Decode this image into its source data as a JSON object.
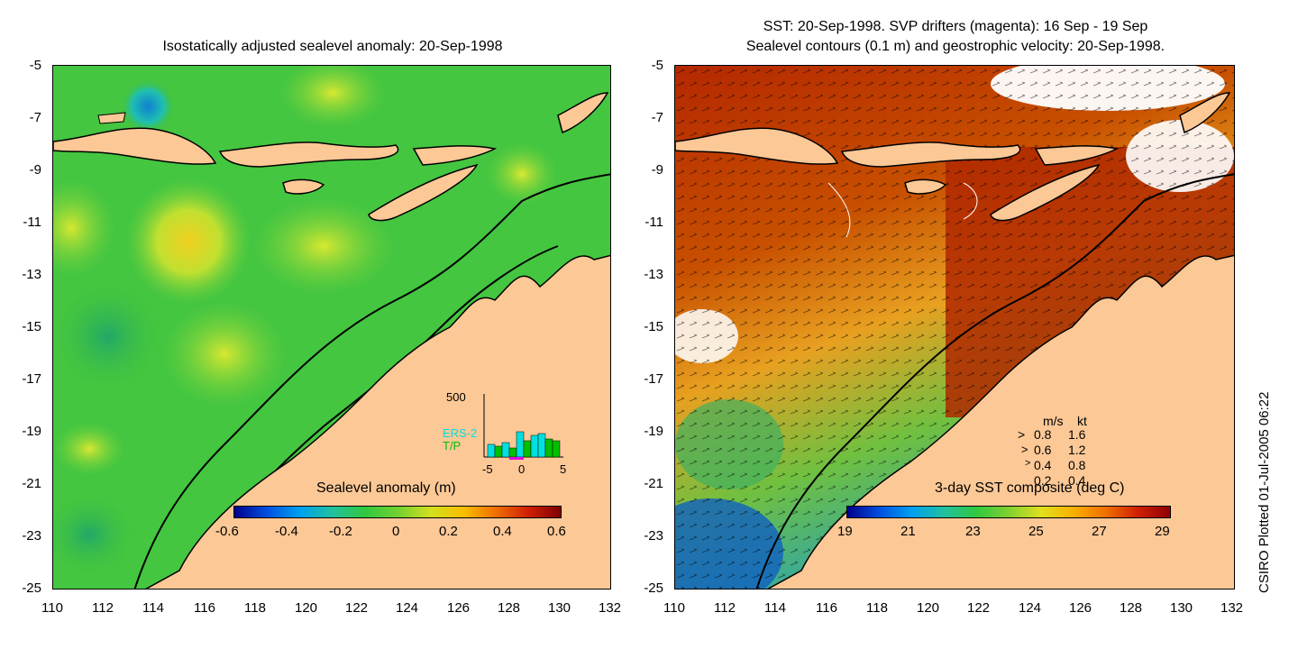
{
  "left_panel": {
    "title": "Isostatically adjusted sealevel anomaly: 20-Sep-1998",
    "y_ticks": [
      "-5",
      "-7",
      "-9",
      "-11",
      "-13",
      "-15",
      "-17",
      "-19",
      "-21",
      "-23",
      "-25"
    ],
    "x_ticks": [
      "110",
      "112",
      "114",
      "116",
      "118",
      "120",
      "122",
      "124",
      "126",
      "128",
      "130",
      "132"
    ],
    "colorbar_label": "Sealevel anomaly (m)",
    "colorbar_ticks": [
      "-0.6",
      "-0.4",
      "-0.2",
      "0",
      "0.2",
      "0.4",
      "0.6"
    ],
    "inset": {
      "y_label": "500",
      "legend_ers": "ERS-2",
      "legend_tp": "T/P",
      "x_ticks": [
        "-5",
        "0",
        "5"
      ],
      "ers_color": "#00e0e0",
      "tp_color": "#00c000"
    }
  },
  "right_panel": {
    "title_line1": "SST: 20-Sep-1998. SVP drifters (magenta): 16 Sep - 19 Sep",
    "title_line2": "Sealevel contours (0.1 m) and geostrophic velocity: 20-Sep-1998.",
    "y_ticks": [
      "-5",
      "-7",
      "-9",
      "-11",
      "-13",
      "-15",
      "-17",
      "-19",
      "-21",
      "-23",
      "-25"
    ],
    "x_ticks": [
      "110",
      "112",
      "114",
      "116",
      "118",
      "120",
      "122",
      "124",
      "126",
      "128",
      "130",
      "132"
    ],
    "colorbar_label": "3-day SST composite (deg C)",
    "colorbar_ticks": [
      "19",
      "21",
      "23",
      "25",
      "27",
      "29"
    ],
    "velocity_legend": {
      "header_ms": "m/s",
      "header_kt": "kt",
      "rows": [
        {
          "ms": "0.8",
          "kt": "1.6"
        },
        {
          "ms": "0.6",
          "kt": "1.2"
        },
        {
          "ms": "0.4",
          "kt": "0.8"
        },
        {
          "ms": "0.2",
          "kt": "0.4"
        }
      ]
    }
  },
  "credit": "CSIRO Plotted 01-Jul-2005 06:22",
  "colors": {
    "land": "#fcc896",
    "ocean_green": "#3cc83c",
    "sst_warm": "#b42800"
  }
}
